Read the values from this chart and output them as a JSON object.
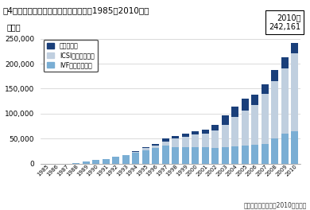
{
  "title": "図4　不妊治療の実施件数の年次推移（1985～2010年）",
  "ylabel": "（件）",
  "source": "日本産科婦人科学会2010年データ",
  "annotation": "2010年\n242,161",
  "years": [
    1985,
    1986,
    1987,
    1988,
    1989,
    1990,
    1991,
    1992,
    1993,
    1994,
    1995,
    1996,
    1997,
    1998,
    1999,
    2000,
    2001,
    2002,
    2003,
    2004,
    2005,
    2006,
    2007,
    2008,
    2009,
    2010
  ],
  "IVF": [
    200,
    300,
    500,
    2000,
    4000,
    7500,
    10000,
    14000,
    18000,
    22000,
    27000,
    32000,
    37000,
    33000,
    34000,
    33000,
    33000,
    32000,
    33000,
    35000,
    36000,
    38000,
    40000,
    50000,
    60000,
    65000
  ],
  "ICSI": [
    0,
    0,
    0,
    0,
    0,
    0,
    0,
    0,
    0,
    2000,
    4000,
    5000,
    8000,
    17000,
    20000,
    25000,
    27000,
    35000,
    45000,
    58000,
    70000,
    80000,
    100000,
    115000,
    130000,
    155000
  ],
  "FET": [
    0,
    0,
    0,
    0,
    0,
    0,
    0,
    0,
    0,
    1000,
    2000,
    3000,
    5000,
    6000,
    6000,
    7000,
    8000,
    11000,
    18000,
    22000,
    24000,
    20000,
    18000,
    22000,
    22000,
    22000
  ],
  "ylim": [
    0,
    260000
  ],
  "yticks": [
    0,
    50000,
    100000,
    150000,
    200000,
    250000
  ],
  "color_IVF": "#7aaed4",
  "color_ICSI": "#c0cfdf",
  "color_FET": "#1a3f7a",
  "bg_color": "#ffffff",
  "legend_labels": [
    "凍結融解胚",
    "ICSI（顕微授精）",
    "IVF（体外受精）"
  ]
}
